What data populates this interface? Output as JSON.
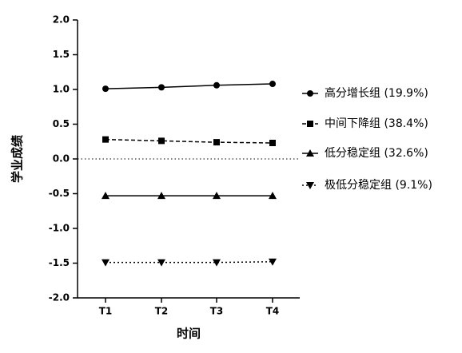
{
  "chart_data": {
    "type": "line",
    "x_label": "时间",
    "y_label": "学业成绩",
    "categories": [
      "T1",
      "T2",
      "T3",
      "T4"
    ],
    "series": [
      {
        "name": "高分增长组 (19.9%)",
        "color": "#000000",
        "line_style": "solid",
        "marker": "circle",
        "values": [
          1.01,
          1.03,
          1.06,
          1.08
        ]
      },
      {
        "name": "中间下降组 (38.4%)",
        "color": "#000000",
        "line_style": "dashed",
        "marker": "square",
        "values": [
          0.28,
          0.26,
          0.24,
          0.23
        ]
      },
      {
        "name": "低分稳定组 (32.6%)",
        "color": "#000000",
        "line_style": "solid",
        "marker": "triangle",
        "values": [
          -0.53,
          -0.53,
          -0.53,
          -0.53
        ]
      },
      {
        "name": "极低分稳定组 (9.1%)",
        "color": "#000000",
        "line_style": "dotted",
        "marker": "triangle-down",
        "values": [
          -1.49,
          -1.49,
          -1.49,
          -1.48
        ]
      }
    ],
    "ylim": [
      -2,
      2
    ],
    "yticks": [
      {
        "value": 2,
        "label": "2.0"
      },
      1.5,
      {
        "value": 1,
        "label": "1.0"
      },
      0.5,
      {
        "value": 0,
        "label": "0.0"
      },
      -0.5,
      {
        "value": -1,
        "label": "-1.0"
      },
      -1.5,
      {
        "value": -2,
        "label": "-2.0"
      }
    ],
    "zero_line": true,
    "legend": "right"
  }
}
